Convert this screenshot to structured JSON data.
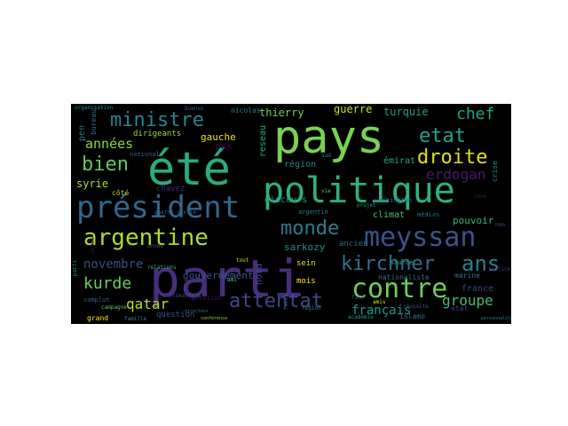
{
  "words": [
    {
      "text": "parti",
      "color": "#472e7c"
    },
    {
      "text": "été",
      "color": "#27ad81"
    },
    {
      "text": "pays",
      "color": "#7ad151"
    },
    {
      "text": "politique",
      "color": "#2db27d"
    },
    {
      "text": "président",
      "color": "#31668e"
    },
    {
      "text": "argentine",
      "color": "#addc30"
    },
    {
      "text": "meyssan",
      "color": "#3b528b"
    },
    {
      "text": "contre",
      "color": "#6ece58"
    },
    {
      "text": "attentat",
      "color": "#3f4889"
    },
    {
      "text": "kirchner",
      "color": "#2c728e"
    },
    {
      "text": "monde",
      "color": "#287d8e"
    },
    {
      "text": "ministre",
      "color": "#25848e"
    },
    {
      "text": "etat",
      "color": "#21a685"
    },
    {
      "text": "droite",
      "color": "#dde318"
    },
    {
      "text": "bien",
      "color": "#5ec962"
    },
    {
      "text": "ans",
      "color": "#26828e"
    },
    {
      "text": "kurde",
      "color": "#6ccd5a"
    },
    {
      "text": "chef",
      "color": "#20a486"
    },
    {
      "text": "années",
      "color": "#8bd646"
    },
    {
      "text": "erdogan",
      "color": "#48186a"
    },
    {
      "text": "qatar",
      "color": "#b8de29"
    },
    {
      "text": "novembre",
      "color": "#3e4a89"
    },
    {
      "text": "groupe",
      "color": "#44bf70"
    },
    {
      "text": "français",
      "color": "#1f9e89"
    },
    {
      "text": "guerre",
      "color": "#c8e020"
    },
    {
      "text": "turquie",
      "color": "#1fa088"
    },
    {
      "text": "thierry",
      "color": "#6ece58"
    },
    {
      "text": "syrie",
      "color": "#addc30"
    },
    {
      "text": "gouvernement",
      "color": "#365c8d"
    },
    {
      "text": "sarkozy",
      "color": "#21918c"
    },
    {
      "text": "climat",
      "color": "#4ac16d"
    },
    {
      "text": "pouvoir",
      "color": "#35b779"
    },
    {
      "text": "question",
      "color": "#3b528b"
    },
    {
      "text": "france",
      "color": "#3e4989"
    },
    {
      "text": "région",
      "color": "#23898e"
    },
    {
      "text": "émirat",
      "color": "#25ab82"
    },
    {
      "text": "discours",
      "color": "#1f988b"
    },
    {
      "text": "côté",
      "color": "#b5de2b"
    },
    {
      "text": "chavez",
      "color": "#482878"
    },
    {
      "text": "gauche",
      "color": "#e5e419"
    },
    {
      "text": "pkk",
      "color": "#440154"
    },
    {
      "text": "ancien",
      "color": "#31688e"
    },
    {
      "text": "sein",
      "color": "#d8e219"
    },
    {
      "text": "mois",
      "color": "#fde725"
    },
    {
      "text": "nationaliste",
      "color": "#2a788e"
    },
    {
      "text": "marine",
      "color": "#2c728e"
    },
    {
      "text": "pen",
      "color": "#2e6e8e"
    },
    {
      "text": "nord",
      "color": "#3b528b"
    },
    {
      "text": "reseau",
      "color": "#29af7f"
    },
    {
      "text": "dirigeants",
      "color": "#94d840"
    },
    {
      "text": "nicolas",
      "color": "#277f8e"
    },
    {
      "text": "bureau",
      "color": "#306a8e"
    },
    {
      "text": "national",
      "color": "#32658e"
    },
    {
      "text": "médias",
      "color": "#2d718e"
    },
    {
      "text": "etat",
      "color": "#3f4788"
    },
    {
      "text": "grand",
      "color": "#fde725"
    },
    {
      "text": "position",
      "color": "#471063"
    },
    {
      "text": "campagne",
      "color": "#5cc863"
    },
    {
      "text": "année",
      "color": "#3a548c"
    },
    {
      "text": "islamo",
      "color": "#2a788e"
    },
    {
      "text": "argentin",
      "color": "#24868e"
    },
    {
      "text": "washington",
      "color": "#2b758e"
    },
    {
      "text": "source",
      "color": "#22a884"
    },
    {
      "text": "buenos",
      "color": "#38598c"
    },
    {
      "text": "amis",
      "color": "#e2e418"
    },
    {
      "text": "crise",
      "color": "#20928c"
    },
    {
      "text": "fait",
      "color": "#3d4d8a"
    },
    {
      "text": "tout",
      "color": "#d0e11c"
    },
    {
      "text": "organisation",
      "color": "#1f958b"
    },
    {
      "text": "relations",
      "color": "#38b977"
    },
    {
      "text": "complot",
      "color": "#33638d"
    },
    {
      "text": "climatique",
      "color": "#3c4f8a"
    },
    {
      "text": "guerre civile",
      "color": "#2f6b8e"
    },
    {
      "text": "armée",
      "color": "#46085c"
    },
    {
      "text": "famille",
      "color": "#23898e"
    },
    {
      "text": "justice",
      "color": "#4e2d84"
    },
    {
      "text": "réussite",
      "color": "#3b528b"
    },
    {
      "text": "académie",
      "color": "#21a585"
    },
    {
      "text": "conférence",
      "color": "#9bd93c"
    },
    {
      "text": "directeur",
      "color": "#2c728e"
    },
    {
      "text": "personnalité",
      "color": "#26828e"
    },
    {
      "text": "ami",
      "color": "#54c568"
    },
    {
      "text": "sud",
      "color": "#24868e"
    },
    {
      "text": "force",
      "color": "#2e6f8e"
    },
    {
      "text": "zone",
      "color": "#471365"
    },
    {
      "text": "projet",
      "color": "#1e9b8a"
    },
    {
      "text": "nom",
      "color": "#3e4c8a"
    },
    {
      "text": "vie",
      "color": "#5dc863"
    },
    {
      "text": "parti",
      "color": "#20938c"
    },
    {
      "text": "région",
      "color": "#2a788e"
    }
  ]
}
